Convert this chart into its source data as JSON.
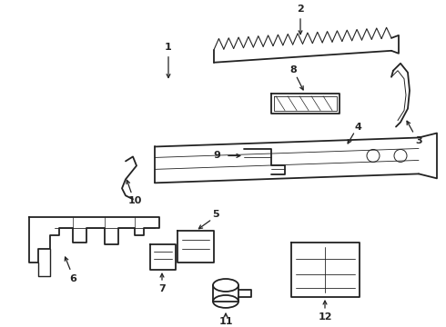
{
  "bg_color": "#ffffff",
  "line_color": "#222222",
  "fig_width": 4.9,
  "fig_height": 3.6,
  "dpi": 100,
  "label_fontsize": 8
}
